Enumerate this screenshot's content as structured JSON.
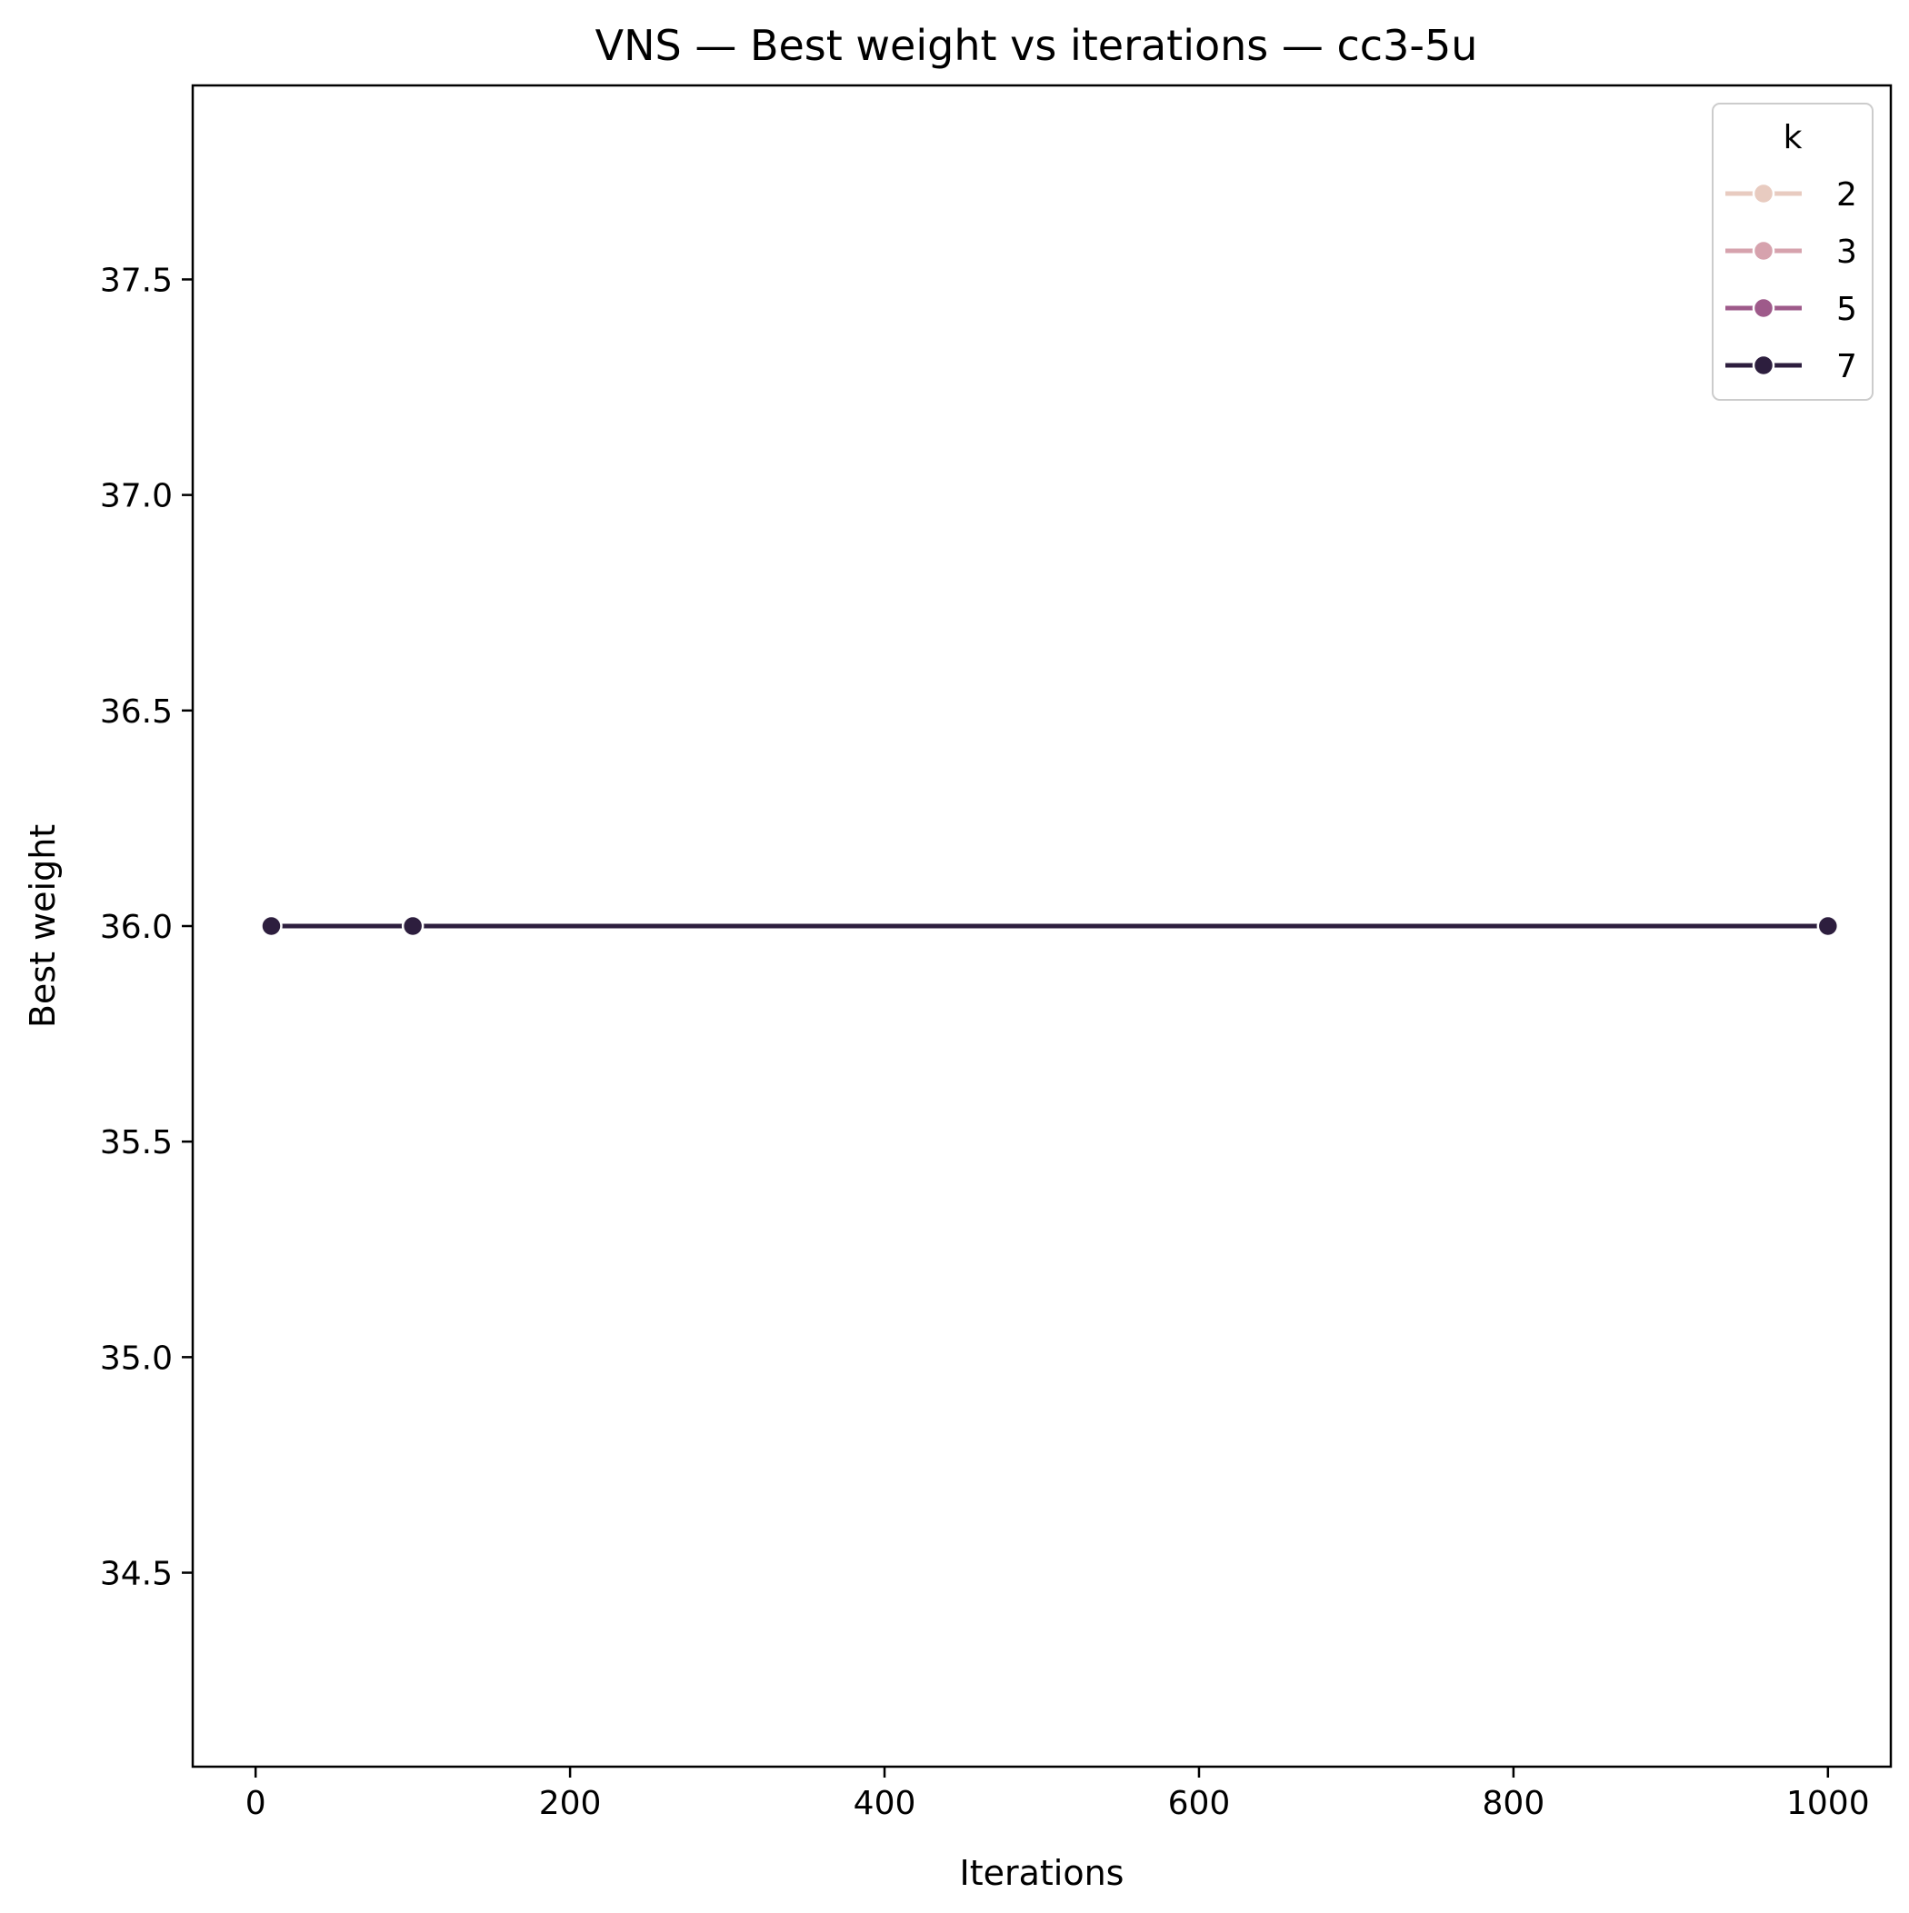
{
  "chart_data": {
    "type": "line",
    "title": "VNS — Best weight vs iterations — cc3-5u",
    "xlabel": "Iterations",
    "ylabel": "Best weight",
    "xlim": [
      -40,
      1040
    ],
    "ylim": [
      34.05,
      37.95
    ],
    "x_ticks": [
      0,
      200,
      400,
      600,
      800,
      1000
    ],
    "x_tick_labels": [
      "0",
      "200",
      "400",
      "600",
      "800",
      "1000"
    ],
    "y_ticks": [
      34.5,
      35.0,
      35.5,
      36.0,
      36.5,
      37.0,
      37.5
    ],
    "y_tick_labels": [
      "34.5",
      "35.0",
      "35.5",
      "36.0",
      "36.5",
      "37.0",
      "37.5"
    ],
    "grid": false,
    "legend": {
      "title": "k",
      "placement": "top-right"
    },
    "series": [
      {
        "name": "2",
        "color": "#e8cbc0",
        "x": [
          10,
          100,
          1000
        ],
        "y": [
          36,
          36,
          36
        ]
      },
      {
        "name": "3",
        "color": "#d6a2ad",
        "x": [
          10,
          100,
          1000
        ],
        "y": [
          36,
          36,
          36
        ]
      },
      {
        "name": "5",
        "color": "#9e5a8a",
        "x": [
          10,
          100,
          1000
        ],
        "y": [
          36,
          36,
          36
        ]
      },
      {
        "name": "7",
        "color": "#2d1e3e",
        "x": [
          10,
          100,
          1000
        ],
        "y": [
          36,
          36,
          36
        ]
      }
    ]
  }
}
